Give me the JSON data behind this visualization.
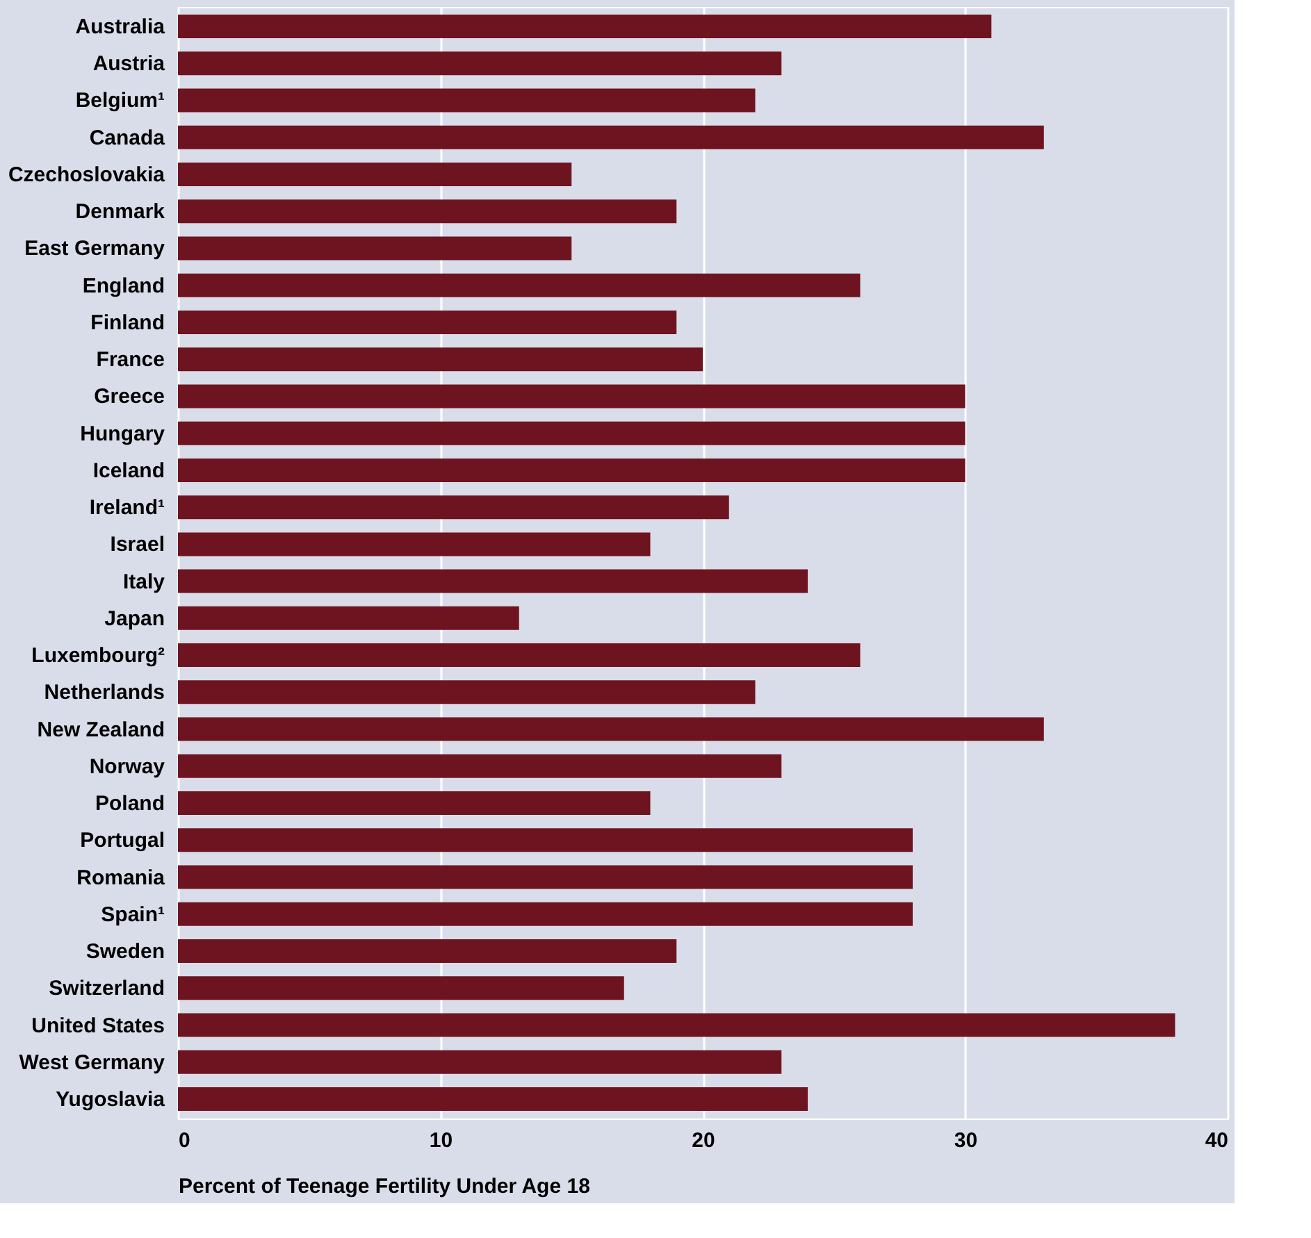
{
  "chart_data": {
    "type": "bar",
    "orientation": "horizontal",
    "xlabel": "Percent of Teenage Fertility Under Age 18",
    "categories": [
      "Australia",
      "Austria",
      "Belgium¹",
      "Canada",
      "Czechoslovakia",
      "Denmark",
      "East Germany",
      "England",
      "Finland",
      "France",
      "Greece",
      "Hungary",
      "Iceland",
      "Ireland¹",
      "Israel",
      "Italy",
      "Japan",
      "Luxembourg²",
      "Netherlands",
      "New Zealand",
      "Norway",
      "Poland",
      "Portugal",
      "Romania",
      "Spain¹",
      "Sweden",
      "Switzerland",
      "United States",
      "West Germany",
      "Yugoslavia"
    ],
    "values": [
      31,
      23,
      22,
      33,
      15,
      19,
      15,
      26,
      19,
      20,
      30,
      30,
      30,
      21,
      18,
      24,
      13,
      26,
      22,
      33,
      23,
      18,
      28,
      28,
      28,
      19,
      17,
      38,
      23,
      24
    ],
    "color": "#6e1420",
    "xlim": [
      0,
      40
    ],
    "xticks": [
      0,
      10,
      20,
      30,
      40
    ],
    "grid": "x"
  }
}
